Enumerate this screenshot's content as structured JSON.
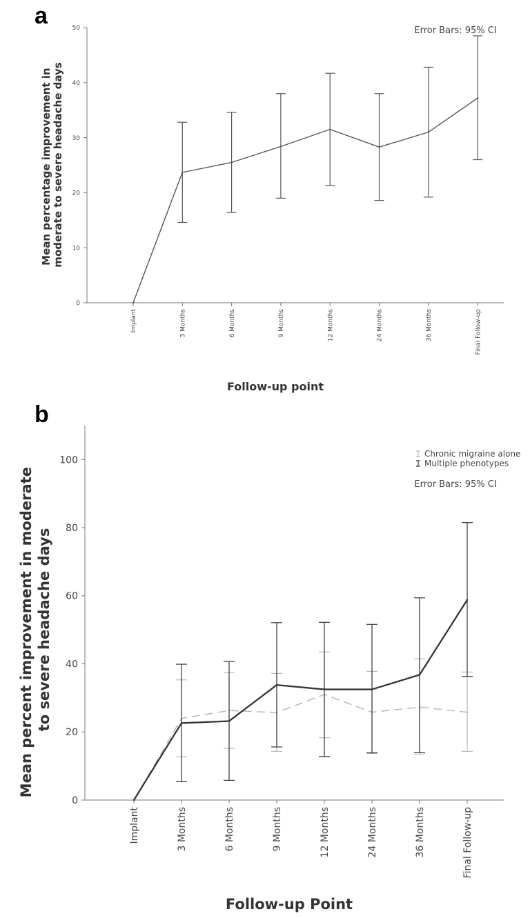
{
  "chart_data": [
    {
      "type": "line",
      "panel": "a",
      "ylabel": "Mean percentage improvement in moderate to severe headache days",
      "ylabel_lines": [
        "Mean percentage improvement in",
        "moderate to severe headache days"
      ],
      "xlabel": "Follow-up point",
      "annotation": "Error Bars: 95% CI",
      "ylim": [
        0,
        50
      ],
      "yticks": [
        "0",
        "10",
        "20",
        "30",
        "40",
        "50"
      ],
      "categories": [
        "Implant",
        "3 Months",
        "6 Months",
        "9 Months",
        "12 Months",
        "24 Months",
        "36 Months",
        "Final Follow-up"
      ],
      "series": [
        {
          "values": [
            0,
            23.7,
            25.5,
            28.4,
            31.5,
            28.3,
            31.0,
            37.2
          ],
          "ci_low": [
            null,
            14.6,
            16.4,
            19.0,
            21.3,
            18.6,
            19.2,
            26.0
          ],
          "ci_high": [
            null,
            32.8,
            34.6,
            38.0,
            41.7,
            38.0,
            42.8,
            48.5
          ],
          "color": "#555555",
          "dash": "solid"
        }
      ]
    },
    {
      "type": "line",
      "panel": "b",
      "ylabel": "Mean percent improvement in moderate to severe headache days",
      "ylabel_lines": [
        "Mean percent improvement in moderate",
        "to severe headache days"
      ],
      "xlabel": "Follow-up Point",
      "annotation": "Error Bars: 95% CI",
      "legend": {
        "position": "top-right",
        "items": [
          "Chronic migraine alone",
          "Multiple phenotypes"
        ]
      },
      "ylim": [
        0,
        110
      ],
      "yticks": [
        "0",
        "20",
        "40",
        "60",
        "80",
        "100"
      ],
      "categories": [
        "Implant",
        "3 Months",
        "6 Months",
        "9 Months",
        "12 Months",
        "24 Months",
        "36 Months",
        "Final Follow-up"
      ],
      "series": [
        {
          "name": "Chronic migraine alone",
          "values": [
            0,
            24.0,
            26.3,
            25.7,
            31.0,
            25.8,
            27.3,
            25.8
          ],
          "ci_low": [
            null,
            12.7,
            15.2,
            14.3,
            18.3,
            14.0,
            13.5,
            14.3
          ],
          "ci_high": [
            null,
            35.3,
            37.5,
            37.2,
            43.5,
            37.8,
            41.5,
            37.6
          ],
          "color": "#b8b8b8",
          "dash": "dashed"
        },
        {
          "name": "Multiple phenotypes",
          "values": [
            0,
            22.6,
            23.2,
            33.8,
            32.5,
            32.5,
            36.8,
            58.8
          ],
          "ci_low": [
            null,
            5.4,
            5.8,
            15.6,
            12.8,
            13.8,
            13.9,
            36.3
          ],
          "ci_high": [
            null,
            39.9,
            40.7,
            52.1,
            52.2,
            51.6,
            59.4,
            81.5
          ],
          "color": "#333333",
          "dash": "solid"
        }
      ]
    }
  ]
}
